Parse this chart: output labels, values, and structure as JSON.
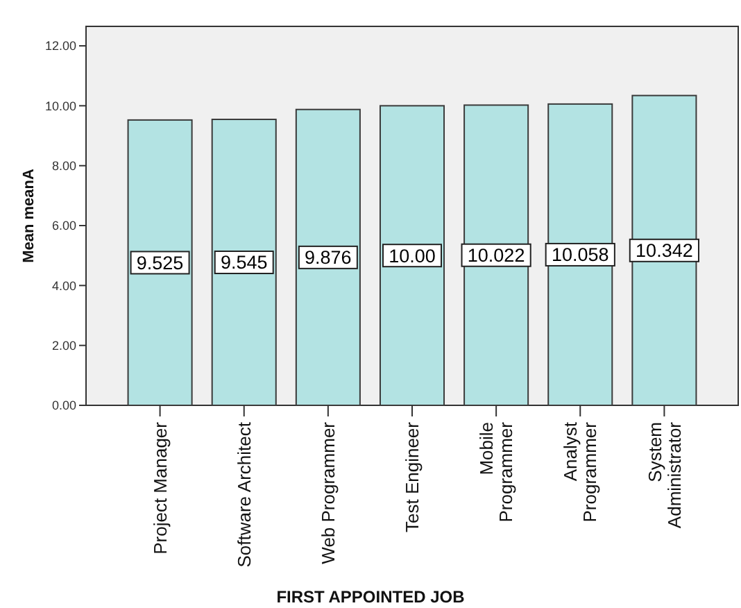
{
  "chart_data": {
    "type": "bar",
    "xlabel": "FIRST APPOINTED JOB",
    "ylabel": "Mean meanA",
    "categories": [
      "Project Manager",
      "Software Architect",
      "Web Programmer",
      "Test Engineer",
      "Mobile\nProgrammer",
      "Analyst\nProgrammer",
      "System\nAdministrator"
    ],
    "values": [
      9.525,
      9.545,
      9.876,
      10.0,
      10.022,
      10.058,
      10.342
    ],
    "value_labels": [
      "9.525",
      "9.545",
      "9.876",
      "10.00",
      "10.022",
      "10.058",
      "10.342"
    ],
    "color": "#b3e3e3",
    "ylim": [
      0,
      12.65
    ],
    "yticks": [
      {
        "value": 0,
        "label": "0.00"
      },
      {
        "value": 2,
        "label": "2.00"
      },
      {
        "value": 4,
        "label": "4.00"
      },
      {
        "value": 6,
        "label": "6.00"
      },
      {
        "value": 8,
        "label": "8.00"
      },
      {
        "value": 10,
        "label": "10.00"
      },
      {
        "value": 12,
        "label": "12.00"
      }
    ],
    "grid": false
  }
}
